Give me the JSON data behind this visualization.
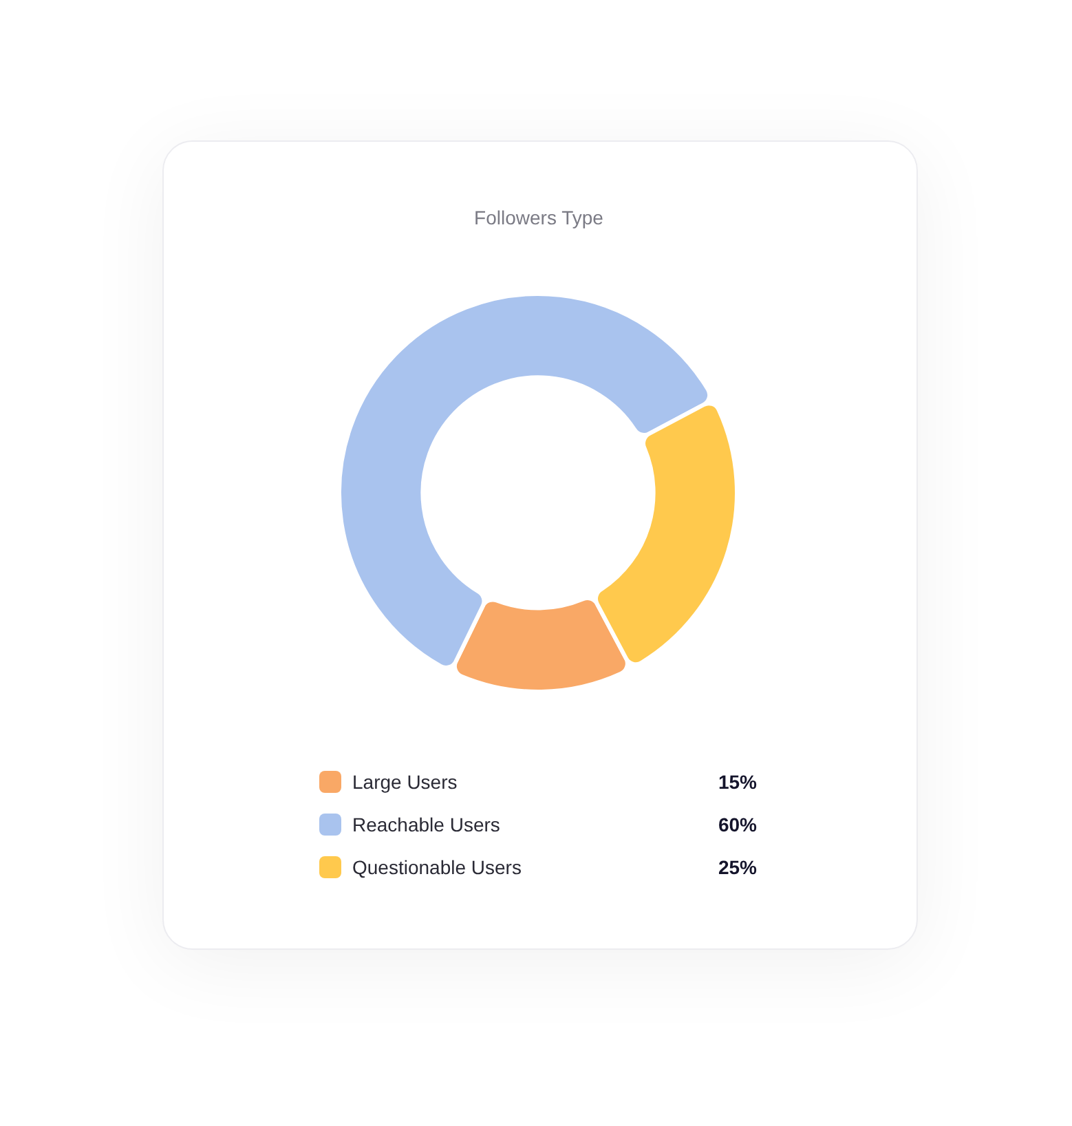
{
  "chart_data": {
    "type": "donut",
    "title": "Followers Type",
    "categories": [
      "Large Users",
      "Reachable Users",
      "Questionable Users"
    ],
    "values": [
      15,
      60,
      25
    ],
    "value_labels": [
      "15%",
      "60%",
      "25%"
    ],
    "colors": [
      "#f9a866",
      "#a9c3ee",
      "#ffc94d"
    ],
    "legend": "bottom"
  }
}
